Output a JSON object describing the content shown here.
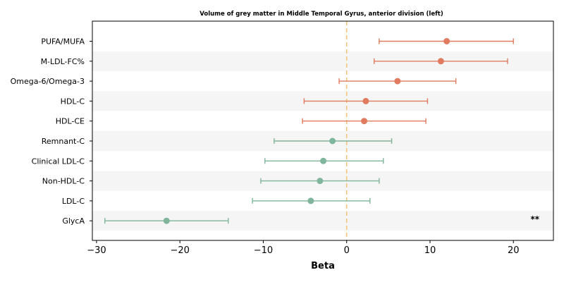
{
  "chart_data": {
    "type": "forest",
    "title": "Volume of grey matter in Middle Temporal Gyrus, anterior division (left)",
    "xlabel": "Beta",
    "xlim": [
      -30.5,
      24.8
    ],
    "xticks": [
      -30,
      -20,
      -10,
      0,
      10,
      20
    ],
    "xtick_labels": [
      "−30",
      "−20",
      "−10",
      "0",
      "10",
      "20"
    ],
    "reference_line": 0,
    "colors": {
      "positive": "#e07b5f",
      "negative": "#7fb59a",
      "reference": "#f5c27a",
      "band": "#f5f5f5"
    },
    "rows": [
      {
        "label": "PUFA/MUFA",
        "beta": 12.0,
        "lo": 3.9,
        "hi": 20.0,
        "sig": ""
      },
      {
        "label": "M-LDL-FC%",
        "beta": 11.3,
        "lo": 3.3,
        "hi": 19.3,
        "sig": ""
      },
      {
        "label": "Omega-6/Omega-3",
        "beta": 6.1,
        "lo": -0.9,
        "hi": 13.1,
        "sig": ""
      },
      {
        "label": "HDL-C",
        "beta": 2.3,
        "lo": -5.1,
        "hi": 9.7,
        "sig": ""
      },
      {
        "label": "HDL-CE",
        "beta": 2.1,
        "lo": -5.3,
        "hi": 9.5,
        "sig": ""
      },
      {
        "label": "Remnant-C",
        "beta": -1.7,
        "lo": -8.7,
        "hi": 5.4,
        "sig": ""
      },
      {
        "label": "Clinical LDL-C",
        "beta": -2.8,
        "lo": -9.8,
        "hi": 4.4,
        "sig": ""
      },
      {
        "label": "Non-HDL-C",
        "beta": -3.2,
        "lo": -10.3,
        "hi": 3.9,
        "sig": ""
      },
      {
        "label": "LDL-C",
        "beta": -4.3,
        "lo": -11.3,
        "hi": 2.8,
        "sig": ""
      },
      {
        "label": "GlycA",
        "beta": -21.6,
        "lo": -29.0,
        "hi": -14.2,
        "sig": "**"
      }
    ]
  }
}
